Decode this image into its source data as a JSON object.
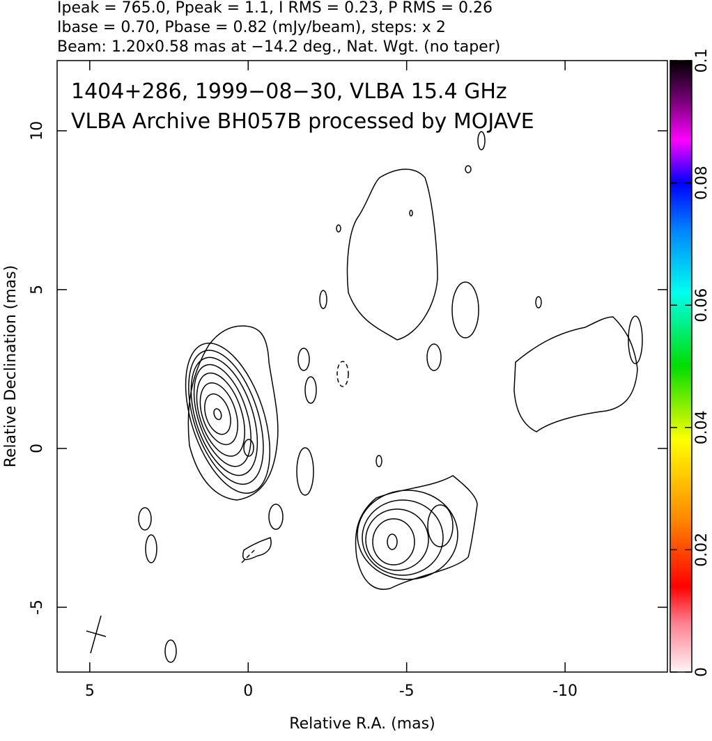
{
  "chart_data": {
    "type": "contour",
    "header": [
      "Ipeak = 765.0, Ppeak = 1.1, I RMS = 0.23, P RMS = 0.26",
      "Ibase = 0.70, Pbase = 0.82 (mJy/beam), steps: x 2",
      "Beam: 1.20x0.58 mas at −14.2 deg., Nat. Wgt. (no taper)"
    ],
    "annotations": [
      "1404+286, 1999−08−30, VLBA 15.4 GHz",
      "VLBA Archive BH057B processed by MOJAVE"
    ],
    "xlabel": "Relative R.A. (mas)",
    "ylabel": "Relative Declination (mas)",
    "xlim": [
      6.03,
      -13.23
    ],
    "ylim": [
      -7.04,
      12.21
    ],
    "xticks": [
      5,
      0,
      -5,
      -10
    ],
    "yticks": [
      -5,
      0,
      5,
      10
    ],
    "colorbar": {
      "lim": [
        0,
        0.1
      ],
      "ticks": [
        0,
        0.02,
        0.04,
        0.06,
        0.08,
        0.1
      ]
    }
  }
}
